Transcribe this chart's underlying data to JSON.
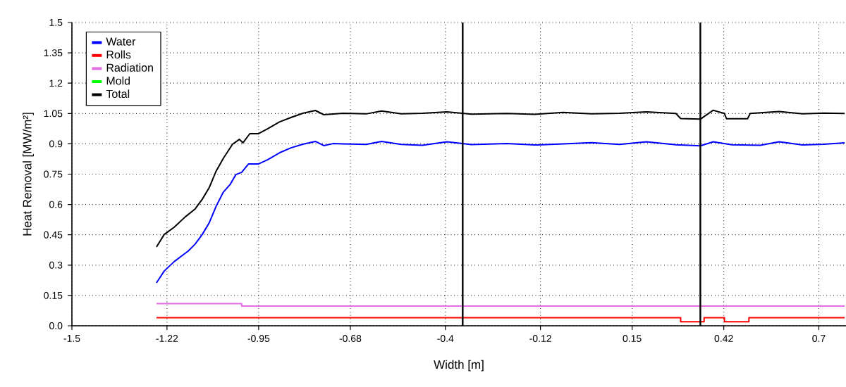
{
  "chart_data": {
    "type": "line",
    "xlabel": "Width [m]",
    "ylabel": "Heat Removal [MW/m²]",
    "xlim": [
      -1.5,
      0.78
    ],
    "ylim": [
      0,
      1.5
    ],
    "xticks": [
      -1.5,
      -1.22,
      -0.95,
      -0.68,
      -0.4,
      -0.12,
      0.15,
      0.42,
      0.7
    ],
    "yticks": [
      {
        "value": 0,
        "label": "0.0"
      },
      0.15,
      0.3,
      0.45,
      0.6,
      0.75,
      0.9,
      1.05,
      1.2,
      1.35,
      1.5
    ],
    "grid": true,
    "legend": "top left",
    "marker": "none",
    "line_style": "solid",
    "ref_lines": [
      {
        "axis": "x",
        "value": -0.349,
        "color": "#000000"
      },
      {
        "axis": "x",
        "value": 0.351,
        "color": "#000000"
      }
    ],
    "series": [
      {
        "name": "Water",
        "color": "#0000ff",
        "x": [
          -1.251,
          -1.228,
          -1.199,
          -1.158,
          -1.137,
          -1.116,
          -1.096,
          -1.075,
          -1.054,
          -1.034,
          -1.017,
          -1.0,
          -0.98,
          -0.951,
          -0.924,
          -0.888,
          -0.855,
          -0.82,
          -0.783,
          -0.758,
          -0.731,
          -0.702,
          -0.633,
          -0.588,
          -0.53,
          -0.468,
          -0.395,
          -0.323,
          -0.219,
          -0.136,
          -0.053,
          0.03,
          0.113,
          0.192,
          0.279,
          0.351,
          0.389,
          0.444,
          0.527,
          0.583,
          0.652,
          0.714,
          0.776
        ],
        "values": [
          0.212,
          0.271,
          0.317,
          0.369,
          0.404,
          0.452,
          0.508,
          0.592,
          0.661,
          0.699,
          0.748,
          0.759,
          0.8,
          0.8,
          0.821,
          0.856,
          0.88,
          0.898,
          0.912,
          0.891,
          0.901,
          0.9,
          0.897,
          0.912,
          0.897,
          0.893,
          0.91,
          0.896,
          0.901,
          0.894,
          0.9,
          0.906,
          0.897,
          0.91,
          0.895,
          0.89,
          0.91,
          0.895,
          0.893,
          0.91,
          0.894,
          0.898,
          0.905
        ]
      },
      {
        "name": "Rolls",
        "color": "#ff0000",
        "type": "step",
        "x": [
          -1.251,
          0.293,
          0.362,
          0.422,
          0.494,
          0.776
        ],
        "values": [
          0.04,
          0.02,
          0.04,
          0.02,
          0.04,
          0.04
        ]
      },
      {
        "name": "Radiation",
        "color": "#e36ee3",
        "type": "step",
        "x": [
          -1.251,
          -1.0,
          0.776
        ],
        "values": [
          0.11,
          0.097,
          0.097
        ]
      },
      {
        "name": "Mold",
        "color": "#00ff00"
      },
      {
        "name": "Total",
        "color": "#000000",
        "x": [
          -1.251,
          -1.228,
          -1.199,
          -1.166,
          -1.137,
          -1.116,
          -1.096,
          -1.075,
          -1.054,
          -1.027,
          -1.007,
          -0.996,
          -0.976,
          -0.951,
          -0.924,
          -0.888,
          -0.855,
          -0.82,
          -0.783,
          -0.758,
          -0.702,
          -0.633,
          -0.588,
          -0.53,
          -0.468,
          -0.395,
          -0.323,
          -0.219,
          -0.136,
          -0.053,
          0.03,
          0.113,
          0.192,
          0.279,
          0.293,
          0.351,
          0.389,
          0.422,
          0.428,
          0.49,
          0.498,
          0.583,
          0.652,
          0.714,
          0.776
        ],
        "values": [
          0.39,
          0.452,
          0.487,
          0.539,
          0.578,
          0.626,
          0.682,
          0.766,
          0.828,
          0.898,
          0.922,
          0.905,
          0.95,
          0.95,
          0.974,
          1.009,
          1.03,
          1.051,
          1.065,
          1.044,
          1.051,
          1.048,
          1.062,
          1.048,
          1.051,
          1.058,
          1.047,
          1.05,
          1.046,
          1.055,
          1.048,
          1.051,
          1.058,
          1.05,
          1.025,
          1.022,
          1.066,
          1.05,
          1.024,
          1.024,
          1.05,
          1.06,
          1.048,
          1.052,
          1.05
        ]
      }
    ]
  }
}
